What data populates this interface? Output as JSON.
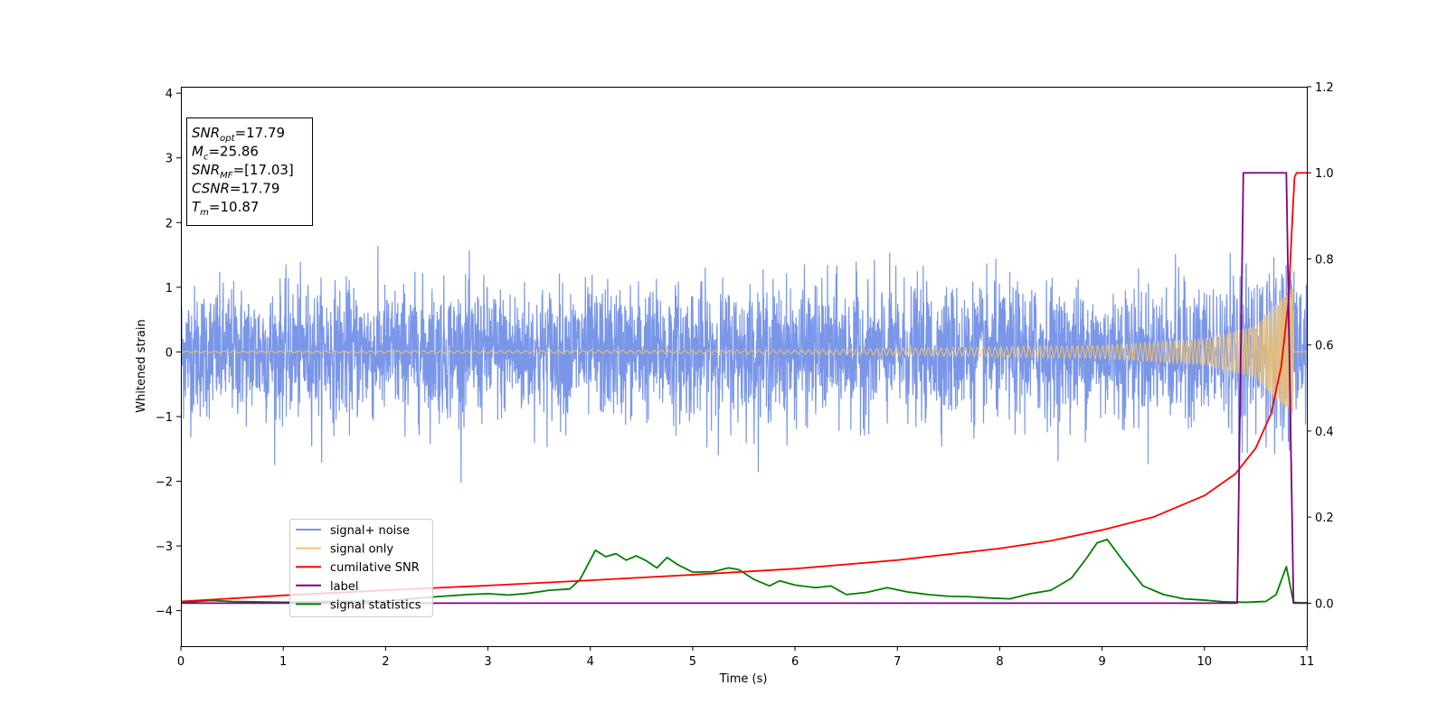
{
  "chart_data": {
    "type": "line",
    "title": "",
    "xlabel": "Time (s)",
    "ylabel": "Whitened strain",
    "y2label": "",
    "xlim": [
      0,
      11
    ],
    "ylim": [
      -4.55,
      4.1
    ],
    "y2lim": [
      -0.1,
      1.2
    ],
    "grid": false,
    "legend_position": "lower-left",
    "x_ticks": [
      0,
      1,
      2,
      3,
      4,
      5,
      6,
      7,
      8,
      9,
      10,
      11
    ],
    "x_tick_labels": [
      "0",
      "1",
      "2",
      "3",
      "4",
      "5",
      "6",
      "7",
      "8",
      "9",
      "10",
      "11"
    ],
    "y_ticks": [
      -4,
      -3,
      -2,
      -1,
      0,
      1,
      2,
      3,
      4
    ],
    "y_tick_labels": [
      "−4",
      "−3",
      "−2",
      "−1",
      "0",
      "1",
      "2",
      "3",
      "4"
    ],
    "y2_ticks": [
      0.0,
      0.2,
      0.4,
      0.6,
      0.8,
      1.0,
      1.2
    ],
    "y2_tick_labels": [
      "0.0",
      "0.2",
      "0.4",
      "0.6",
      "0.8",
      "1.0",
      "1.2"
    ],
    "info_box": [
      {
        "base": "SNR",
        "sub": "opt",
        "rest": "=17.79"
      },
      {
        "base": "M",
        "sub": "c",
        "rest": "=25.86"
      },
      {
        "base": "SNR",
        "sub": "MF",
        "rest": "=[17.03]"
      },
      {
        "base": "CSNR",
        "sub": "",
        "rest": "=17.79"
      },
      {
        "base": "T",
        "sub": "m",
        "rest": "=10.87"
      }
    ],
    "series": [
      {
        "name": "signal+ noise",
        "color": "#7a96e8",
        "axis": "left",
        "noise_envelope": {
          "t": [
            0,
            2,
            4,
            6,
            8,
            9,
            10,
            10.5,
            10.87,
            11
          ],
          "typical_amplitude": 1.2,
          "peak_amplitude": 2.4
        }
      },
      {
        "name": "signal only",
        "color": "#f2c46e",
        "axis": "left",
        "chirp": {
          "amplitude_t": [
            0,
            6,
            9,
            10,
            10.5,
            10.8,
            10.87
          ],
          "amplitude": [
            0.01,
            0.03,
            0.1,
            0.2,
            0.4,
            0.9,
            1.0
          ],
          "merger_time": 10.87
        }
      },
      {
        "name": "cumilative SNR",
        "color": "#ff0000",
        "axis": "right",
        "x": [
          0,
          1,
          2,
          3,
          4,
          5,
          6,
          7,
          8,
          8.5,
          9,
          9.5,
          10,
          10.3,
          10.5,
          10.65,
          10.75,
          10.82,
          10.86,
          10.88,
          10.9,
          11
        ],
        "values": [
          0.004,
          0.018,
          0.03,
          0.041,
          0.053,
          0.066,
          0.08,
          0.1,
          0.127,
          0.145,
          0.17,
          0.2,
          0.25,
          0.3,
          0.36,
          0.44,
          0.55,
          0.7,
          0.9,
          0.99,
          1.0,
          1.0
        ]
      },
      {
        "name": "label",
        "color": "#800080",
        "axis": "right",
        "x": [
          0,
          10.32,
          10.38,
          10.8,
          10.87,
          11
        ],
        "values": [
          0,
          0,
          1,
          1,
          0,
          0
        ]
      },
      {
        "name": "signal statistics",
        "color": "#008000",
        "axis": "right",
        "x": [
          0,
          0.3,
          0.5,
          1,
          1.5,
          2,
          2.5,
          2.8,
          3,
          3.2,
          3.4,
          3.6,
          3.8,
          3.9,
          4.05,
          4.15,
          4.25,
          4.35,
          4.45,
          4.55,
          4.65,
          4.75,
          4.85,
          5,
          5.2,
          5.35,
          5.45,
          5.6,
          5.75,
          5.85,
          6,
          6.2,
          6.35,
          6.5,
          6.7,
          6.9,
          7.1,
          7.3,
          7.5,
          7.7,
          7.9,
          8.1,
          8.3,
          8.5,
          8.7,
          8.85,
          8.95,
          9.05,
          9.2,
          9.4,
          9.6,
          9.8,
          10,
          10.2,
          10.4,
          10.6,
          10.7,
          10.8,
          10.87,
          10.92,
          11
        ],
        "values": [
          0.002,
          0.006,
          0.004,
          0.002,
          0.004,
          0.005,
          0.015,
          0.02,
          0.022,
          0.019,
          0.023,
          0.03,
          0.033,
          0.055,
          0.123,
          0.108,
          0.115,
          0.1,
          0.11,
          0.098,
          0.082,
          0.106,
          0.09,
          0.072,
          0.073,
          0.082,
          0.078,
          0.055,
          0.04,
          0.052,
          0.042,
          0.036,
          0.04,
          0.02,
          0.025,
          0.036,
          0.026,
          0.02,
          0.016,
          0.015,
          0.012,
          0.01,
          0.022,
          0.03,
          0.058,
          0.105,
          0.14,
          0.148,
          0.1,
          0.04,
          0.02,
          0.01,
          0.007,
          0.003,
          0.002,
          0.004,
          0.02,
          0.085,
          0.002,
          0.001,
          0.001
        ]
      }
    ]
  }
}
